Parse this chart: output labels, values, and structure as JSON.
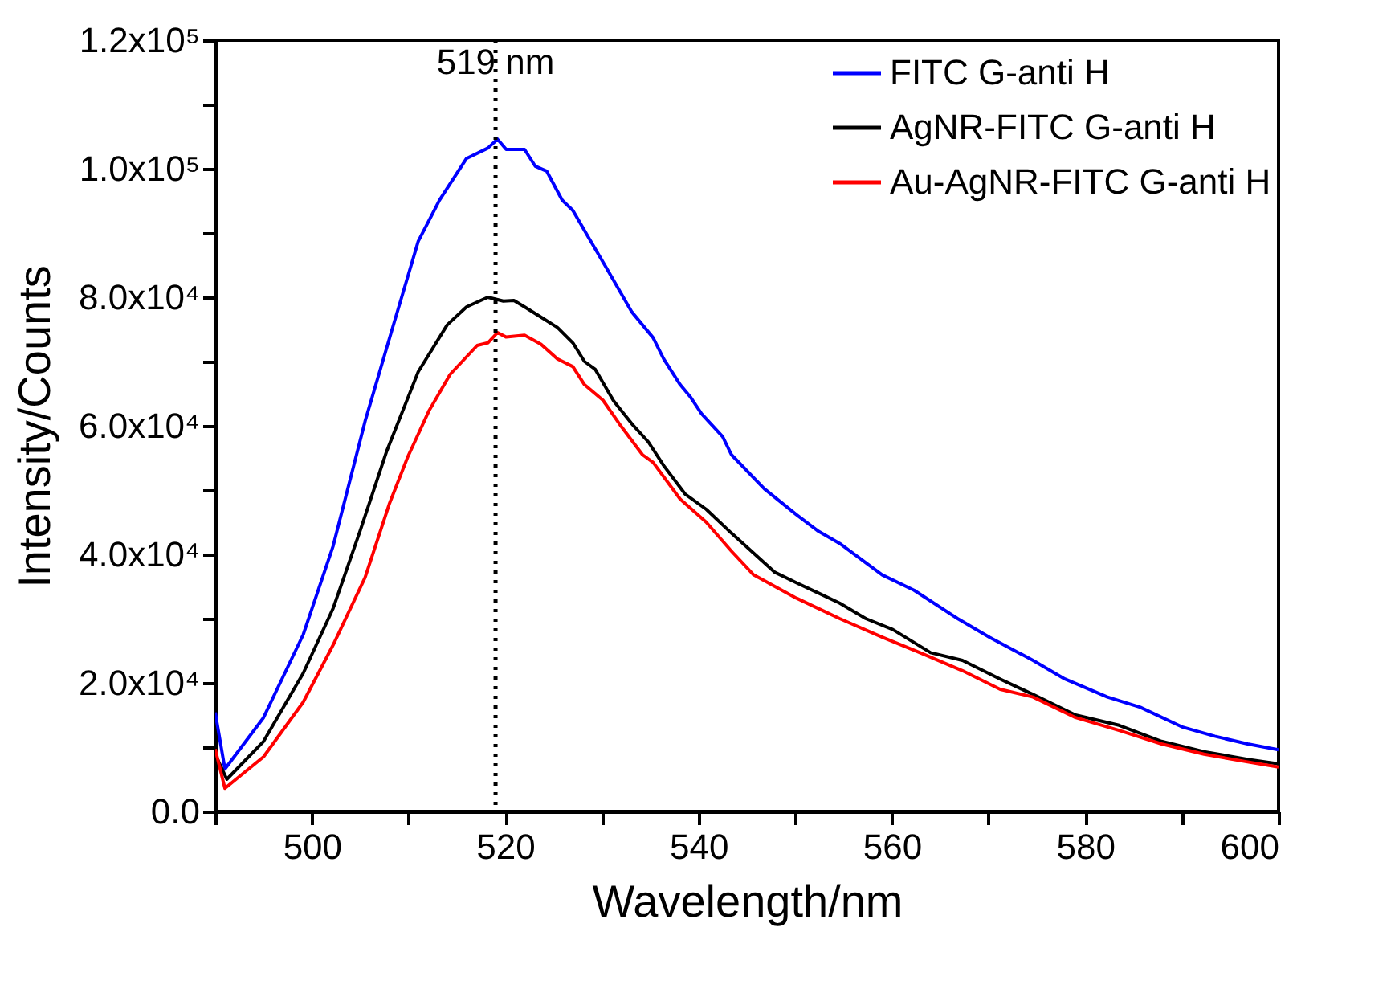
{
  "chart_data": {
    "type": "line",
    "xlabel": "Wavelength/nm",
    "ylabel": "Intensity/Counts",
    "x": [
      490,
      491,
      495,
      499.1,
      502.2,
      505.5,
      508.2,
      511,
      513.2,
      516,
      518.2,
      519.2,
      520.1,
      522,
      523.1,
      524.3,
      525.9,
      527,
      528.7,
      530.3,
      533.1,
      535.3,
      536.4,
      538.1,
      539.2,
      540.3,
      542.5,
      543.4,
      546.8,
      550.1,
      552.3,
      554.6,
      559,
      562.3,
      566.8,
      570.1,
      574.6,
      577.9,
      582.3,
      585.7,
      590.1,
      593.4,
      596.8,
      600
    ],
    "series": [
      {
        "name": "FITC G-anti H",
        "color": "#0000ff",
        "values": [
          15400,
          6600,
          14600,
          27500,
          41300,
          60700,
          74500,
          88700,
          95100,
          101600,
          103200,
          104600,
          103000,
          103000,
          100400,
          99600,
          95100,
          93500,
          89100,
          85000,
          77700,
          73700,
          70400,
          66400,
          64400,
          61900,
          58300,
          55500,
          50200,
          46200,
          43700,
          41700,
          36800,
          34400,
          30000,
          27100,
          23500,
          20600,
          17800,
          16200,
          13100,
          11700,
          10500,
          9600
        ]
      },
      {
        "name": "AgNR-FITC G-anti H",
        "color": "#000000",
        "x": [
          490,
          491.2,
          495,
          499.1,
          502.2,
          505,
          507.7,
          511,
          514,
          516,
          518.2,
          519.8,
          520.9,
          522,
          523.7,
          525.4,
          527,
          528.2,
          529.3,
          531.2,
          533.1,
          534.8,
          536.4,
          538.6,
          540.8,
          543.4,
          547.9,
          550.1,
          554.6,
          557.3,
          560.1,
          564,
          567.3,
          571.2,
          574.6,
          579,
          583.5,
          587.9,
          592.3,
          596.8,
          600
        ],
        "values": [
          8900,
          5000,
          10900,
          21500,
          31600,
          43700,
          55900,
          68400,
          75700,
          78500,
          80000,
          79400,
          79500,
          78500,
          76900,
          75300,
          72900,
          70000,
          68800,
          63900,
          60300,
          57500,
          53800,
          49400,
          47000,
          43300,
          37200,
          35600,
          32400,
          30000,
          28300,
          24700,
          23500,
          20600,
          18200,
          15000,
          13400,
          10900,
          9300,
          8100,
          7400
        ]
      },
      {
        "name": "Au-AgNR-FITC G-anti H",
        "color": "#ff0000",
        "x": [
          490,
          491,
          495,
          499.1,
          502.2,
          505.5,
          508,
          509.9,
          512.1,
          514.3,
          517.1,
          518.2,
          519.2,
          520.1,
          522,
          523.7,
          525.4,
          527,
          528.2,
          530.1,
          532,
          534.2,
          535.3,
          538.1,
          540.8,
          543.4,
          545.7,
          550.1,
          554.6,
          559,
          562.9,
          567.3,
          571.2,
          574.6,
          579,
          583.5,
          587.9,
          592.3,
          596.8,
          600
        ],
        "values": [
          9700,
          3600,
          8500,
          17000,
          25900,
          36400,
          47800,
          55100,
          62300,
          68000,
          72500,
          72900,
          74500,
          73800,
          74100,
          72700,
          70400,
          69200,
          66400,
          64000,
          59900,
          55500,
          54300,
          48600,
          45000,
          40500,
          36800,
          33200,
          30000,
          27100,
          24700,
          21900,
          19000,
          17800,
          14600,
          12600,
          10500,
          8900,
          7700,
          6900
        ]
      }
    ],
    "xlim": [
      490,
      600
    ],
    "xticks": [
      {
        "value": 490,
        "label": null
      },
      500,
      {
        "value": 510,
        "label": null
      },
      520,
      {
        "value": 530,
        "label": null
      },
      540,
      {
        "value": 550,
        "label": null
      },
      560,
      {
        "value": 570,
        "label": null
      },
      580,
      {
        "value": 590,
        "label": null
      },
      600
    ],
    "ylim": [
      0,
      120000
    ],
    "yticks": [
      {
        "value": 0,
        "label": "0.0"
      },
      {
        "value": 10000,
        "label": null
      },
      {
        "value": 20000,
        "label": "2.0x10⁴"
      },
      {
        "value": 30000,
        "label": null
      },
      {
        "value": 40000,
        "label": "4.0x10⁴"
      },
      {
        "value": 50000,
        "label": null
      },
      {
        "value": 60000,
        "label": "6.0x10⁴"
      },
      {
        "value": 70000,
        "label": null
      },
      {
        "value": 80000,
        "label": "8.0x10⁴"
      },
      {
        "value": 90000,
        "label": null
      },
      {
        "value": 100000,
        "label": "1.0x10⁵"
      },
      {
        "value": 110000,
        "label": null
      },
      {
        "value": 120000,
        "label": "1.2x10⁵"
      }
    ],
    "ref_lines": [
      {
        "axis": "x",
        "value": 519,
        "label": "519 nm",
        "color": "#000000",
        "line_style": "dotted"
      }
    ],
    "legend": "top right",
    "grid": false,
    "marker": "none",
    "line_style": "solid"
  }
}
